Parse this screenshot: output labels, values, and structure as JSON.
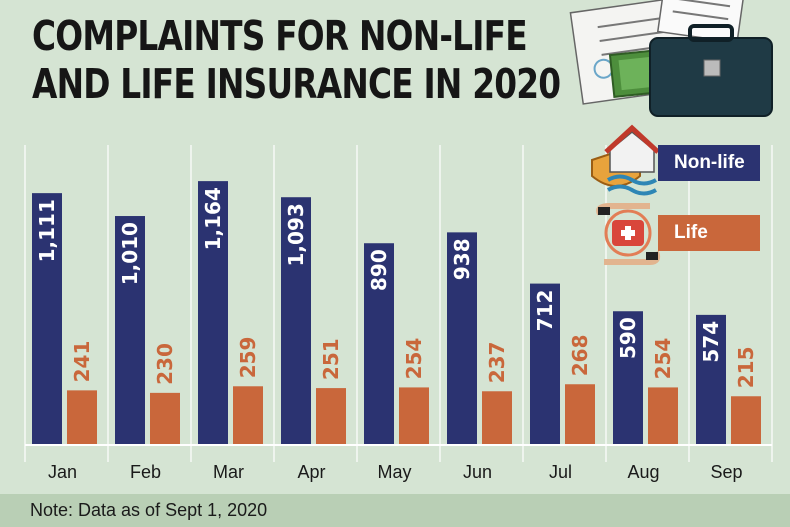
{
  "title_lines": [
    "COMPLAINTS FOR NON-LIFE",
    "AND LIFE INSURANCE IN 2020"
  ],
  "note": "Note: Data as of Sept 1, 2020",
  "colors": {
    "background": "#d5e4d3",
    "non_life": "#2b3371",
    "life": "#c9673b",
    "footer": "#b9cfb5"
  },
  "icons": [
    "documents-icon",
    "money-icon",
    "briefcase-icon",
    "house-shield-icon",
    "medical-kit-hands-icon"
  ],
  "chart_data": {
    "type": "bar",
    "title": "COMPLAINTS FOR NON-LIFE AND LIFE INSURANCE IN 2020",
    "xlabel": "",
    "ylabel": "",
    "ylim": [
      0,
      1200
    ],
    "grid": true,
    "legend_position": "right",
    "categories": [
      "Jan",
      "Feb",
      "Mar",
      "Apr",
      "May",
      "Jun",
      "Jul",
      "Aug",
      "Sep"
    ],
    "series": [
      {
        "name": "Non-life",
        "values": [
          1111,
          1010,
          1164,
          1093,
          890,
          938,
          712,
          590,
          574
        ],
        "labels": [
          "1,111",
          "1,010",
          "1,164",
          "1,093",
          "890",
          "938",
          "712",
          "590",
          "574"
        ]
      },
      {
        "name": "Life",
        "values": [
          241,
          230,
          259,
          251,
          254,
          237,
          268,
          254,
          215
        ],
        "labels": [
          "241",
          "230",
          "259",
          "251",
          "254",
          "237",
          "268",
          "254",
          "215"
        ]
      }
    ]
  }
}
